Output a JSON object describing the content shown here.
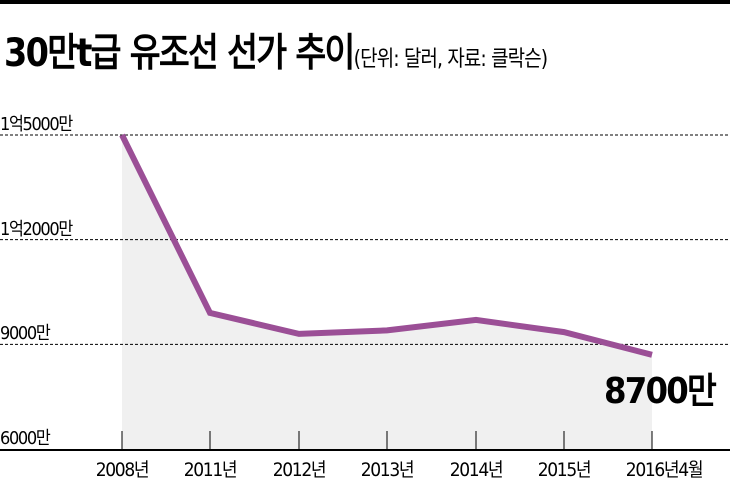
{
  "header": {
    "title": "30만t급 유조선 선가 추이",
    "subtitle": "(단위: 달러, 자료: 클락슨)"
  },
  "colors": {
    "line": "#9b4f96",
    "area": "#f0f0f0",
    "grid": "#000000"
  },
  "y_axis": {
    "ticks": [
      {
        "label": "1억5000만",
        "value": 150000000
      },
      {
        "label": "1억2000만",
        "value": 120000000
      },
      {
        "label": "9000만",
        "value": 90000000
      },
      {
        "label": "6000만",
        "value": 60000000
      }
    ]
  },
  "x_axis": {
    "labels": [
      "2008년",
      "2011년",
      "2012년",
      "2013년",
      "2014년",
      "2015년",
      "2016년4월"
    ]
  },
  "callout": {
    "label": "8700만"
  },
  "chart_data": {
    "type": "line",
    "title": "30만t급 유조선 선가 추이",
    "subtitle": "(단위: 달러, 자료: 클락슨)",
    "xlabel": "",
    "ylabel": "달러",
    "categories": [
      "2008년",
      "2011년",
      "2012년",
      "2013년",
      "2014년",
      "2015년",
      "2016년4월"
    ],
    "series": [
      {
        "name": "30만t급 유조선 선가",
        "values": [
          150000000,
          99000000,
          93000000,
          94000000,
          97000000,
          93500000,
          87000000
        ]
      }
    ],
    "ylim": [
      60000000,
      150000000
    ],
    "yticks": [
      60000000,
      90000000,
      120000000,
      150000000
    ],
    "ytick_labels": [
      "6000만",
      "9000만",
      "1억2000만",
      "1억5000만"
    ],
    "grid": "horizontal dashed",
    "legend": "none",
    "annotations": [
      {
        "category": "2016년4월",
        "text": "8700만"
      }
    ]
  }
}
